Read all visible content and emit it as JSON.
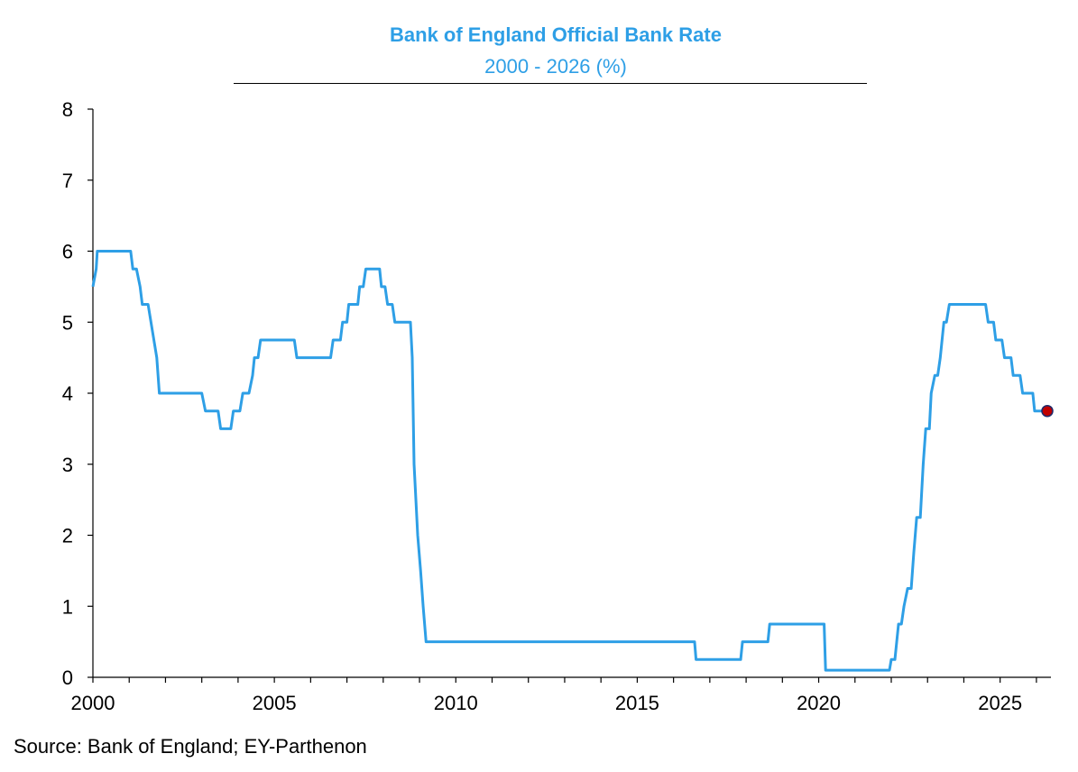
{
  "chart_data": {
    "type": "line",
    "title": "Bank of England Official Bank Rate",
    "subtitle": "2000 - 2026 (%)",
    "xlabel": "",
    "ylabel": "",
    "xlim": [
      2000,
      2026.4
    ],
    "ylim": [
      0,
      8
    ],
    "x_ticks": [
      2000,
      2005,
      2010,
      2015,
      2020,
      2025
    ],
    "y_ticks": [
      0,
      1,
      2,
      3,
      4,
      5,
      6,
      7,
      8
    ],
    "grid": false,
    "legend": "none",
    "series": [
      {
        "color": "#2e9fe6",
        "points": [
          [
            2000.0,
            5.5
          ],
          [
            2000.09,
            5.75
          ],
          [
            2000.12,
            6.0
          ],
          [
            2001.04,
            6.0
          ],
          [
            2001.1,
            5.75
          ],
          [
            2001.2,
            5.75
          ],
          [
            2001.3,
            5.5
          ],
          [
            2001.36,
            5.25
          ],
          [
            2001.52,
            5.25
          ],
          [
            2001.6,
            5.0
          ],
          [
            2001.68,
            4.75
          ],
          [
            2001.76,
            4.5
          ],
          [
            2001.83,
            4.0
          ],
          [
            2003.0,
            4.0
          ],
          [
            2003.1,
            3.75
          ],
          [
            2003.45,
            3.75
          ],
          [
            2003.52,
            3.5
          ],
          [
            2003.8,
            3.5
          ],
          [
            2003.87,
            3.75
          ],
          [
            2004.05,
            3.75
          ],
          [
            2004.13,
            4.0
          ],
          [
            2004.3,
            4.0
          ],
          [
            2004.4,
            4.25
          ],
          [
            2004.45,
            4.5
          ],
          [
            2004.55,
            4.5
          ],
          [
            2004.62,
            4.75
          ],
          [
            2005.55,
            4.75
          ],
          [
            2005.62,
            4.5
          ],
          [
            2006.55,
            4.5
          ],
          [
            2006.62,
            4.75
          ],
          [
            2006.82,
            4.75
          ],
          [
            2006.88,
            5.0
          ],
          [
            2007.0,
            5.0
          ],
          [
            2007.05,
            5.25
          ],
          [
            2007.3,
            5.25
          ],
          [
            2007.35,
            5.5
          ],
          [
            2007.45,
            5.5
          ],
          [
            2007.52,
            5.75
          ],
          [
            2007.9,
            5.75
          ],
          [
            2007.95,
            5.5
          ],
          [
            2008.05,
            5.5
          ],
          [
            2008.12,
            5.25
          ],
          [
            2008.25,
            5.25
          ],
          [
            2008.32,
            5.0
          ],
          [
            2008.75,
            5.0
          ],
          [
            2008.8,
            4.5
          ],
          [
            2008.85,
            3.0
          ],
          [
            2008.95,
            2.0
          ],
          [
            2009.03,
            1.5
          ],
          [
            2009.1,
            1.0
          ],
          [
            2009.18,
            0.5
          ],
          [
            2016.58,
            0.5
          ],
          [
            2016.62,
            0.25
          ],
          [
            2017.85,
            0.25
          ],
          [
            2017.9,
            0.5
          ],
          [
            2018.6,
            0.5
          ],
          [
            2018.65,
            0.75
          ],
          [
            2020.15,
            0.75
          ],
          [
            2020.19,
            0.1
          ],
          [
            2021.95,
            0.1
          ],
          [
            2022.0,
            0.25
          ],
          [
            2022.1,
            0.25
          ],
          [
            2022.15,
            0.5
          ],
          [
            2022.2,
            0.75
          ],
          [
            2022.28,
            0.75
          ],
          [
            2022.35,
            1.0
          ],
          [
            2022.45,
            1.25
          ],
          [
            2022.55,
            1.25
          ],
          [
            2022.62,
            1.75
          ],
          [
            2022.7,
            2.25
          ],
          [
            2022.8,
            2.25
          ],
          [
            2022.88,
            3.0
          ],
          [
            2022.95,
            3.5
          ],
          [
            2023.05,
            3.5
          ],
          [
            2023.1,
            4.0
          ],
          [
            2023.2,
            4.25
          ],
          [
            2023.28,
            4.25
          ],
          [
            2023.35,
            4.5
          ],
          [
            2023.45,
            5.0
          ],
          [
            2023.52,
            5.0
          ],
          [
            2023.6,
            5.25
          ],
          [
            2024.6,
            5.25
          ],
          [
            2024.67,
            5.0
          ],
          [
            2024.82,
            5.0
          ],
          [
            2024.88,
            4.75
          ],
          [
            2025.05,
            4.75
          ],
          [
            2025.12,
            4.5
          ],
          [
            2025.3,
            4.5
          ],
          [
            2025.36,
            4.25
          ],
          [
            2025.55,
            4.25
          ],
          [
            2025.62,
            4.0
          ],
          [
            2025.9,
            4.0
          ],
          [
            2025.95,
            3.75
          ],
          [
            2026.3,
            3.75
          ]
        ]
      }
    ],
    "marker": {
      "point": [
        2026.3,
        3.75
      ],
      "fill": "#c00000",
      "stroke": "#1f2a6b"
    }
  },
  "source": "Source: Bank of England; EY-Parthenon"
}
